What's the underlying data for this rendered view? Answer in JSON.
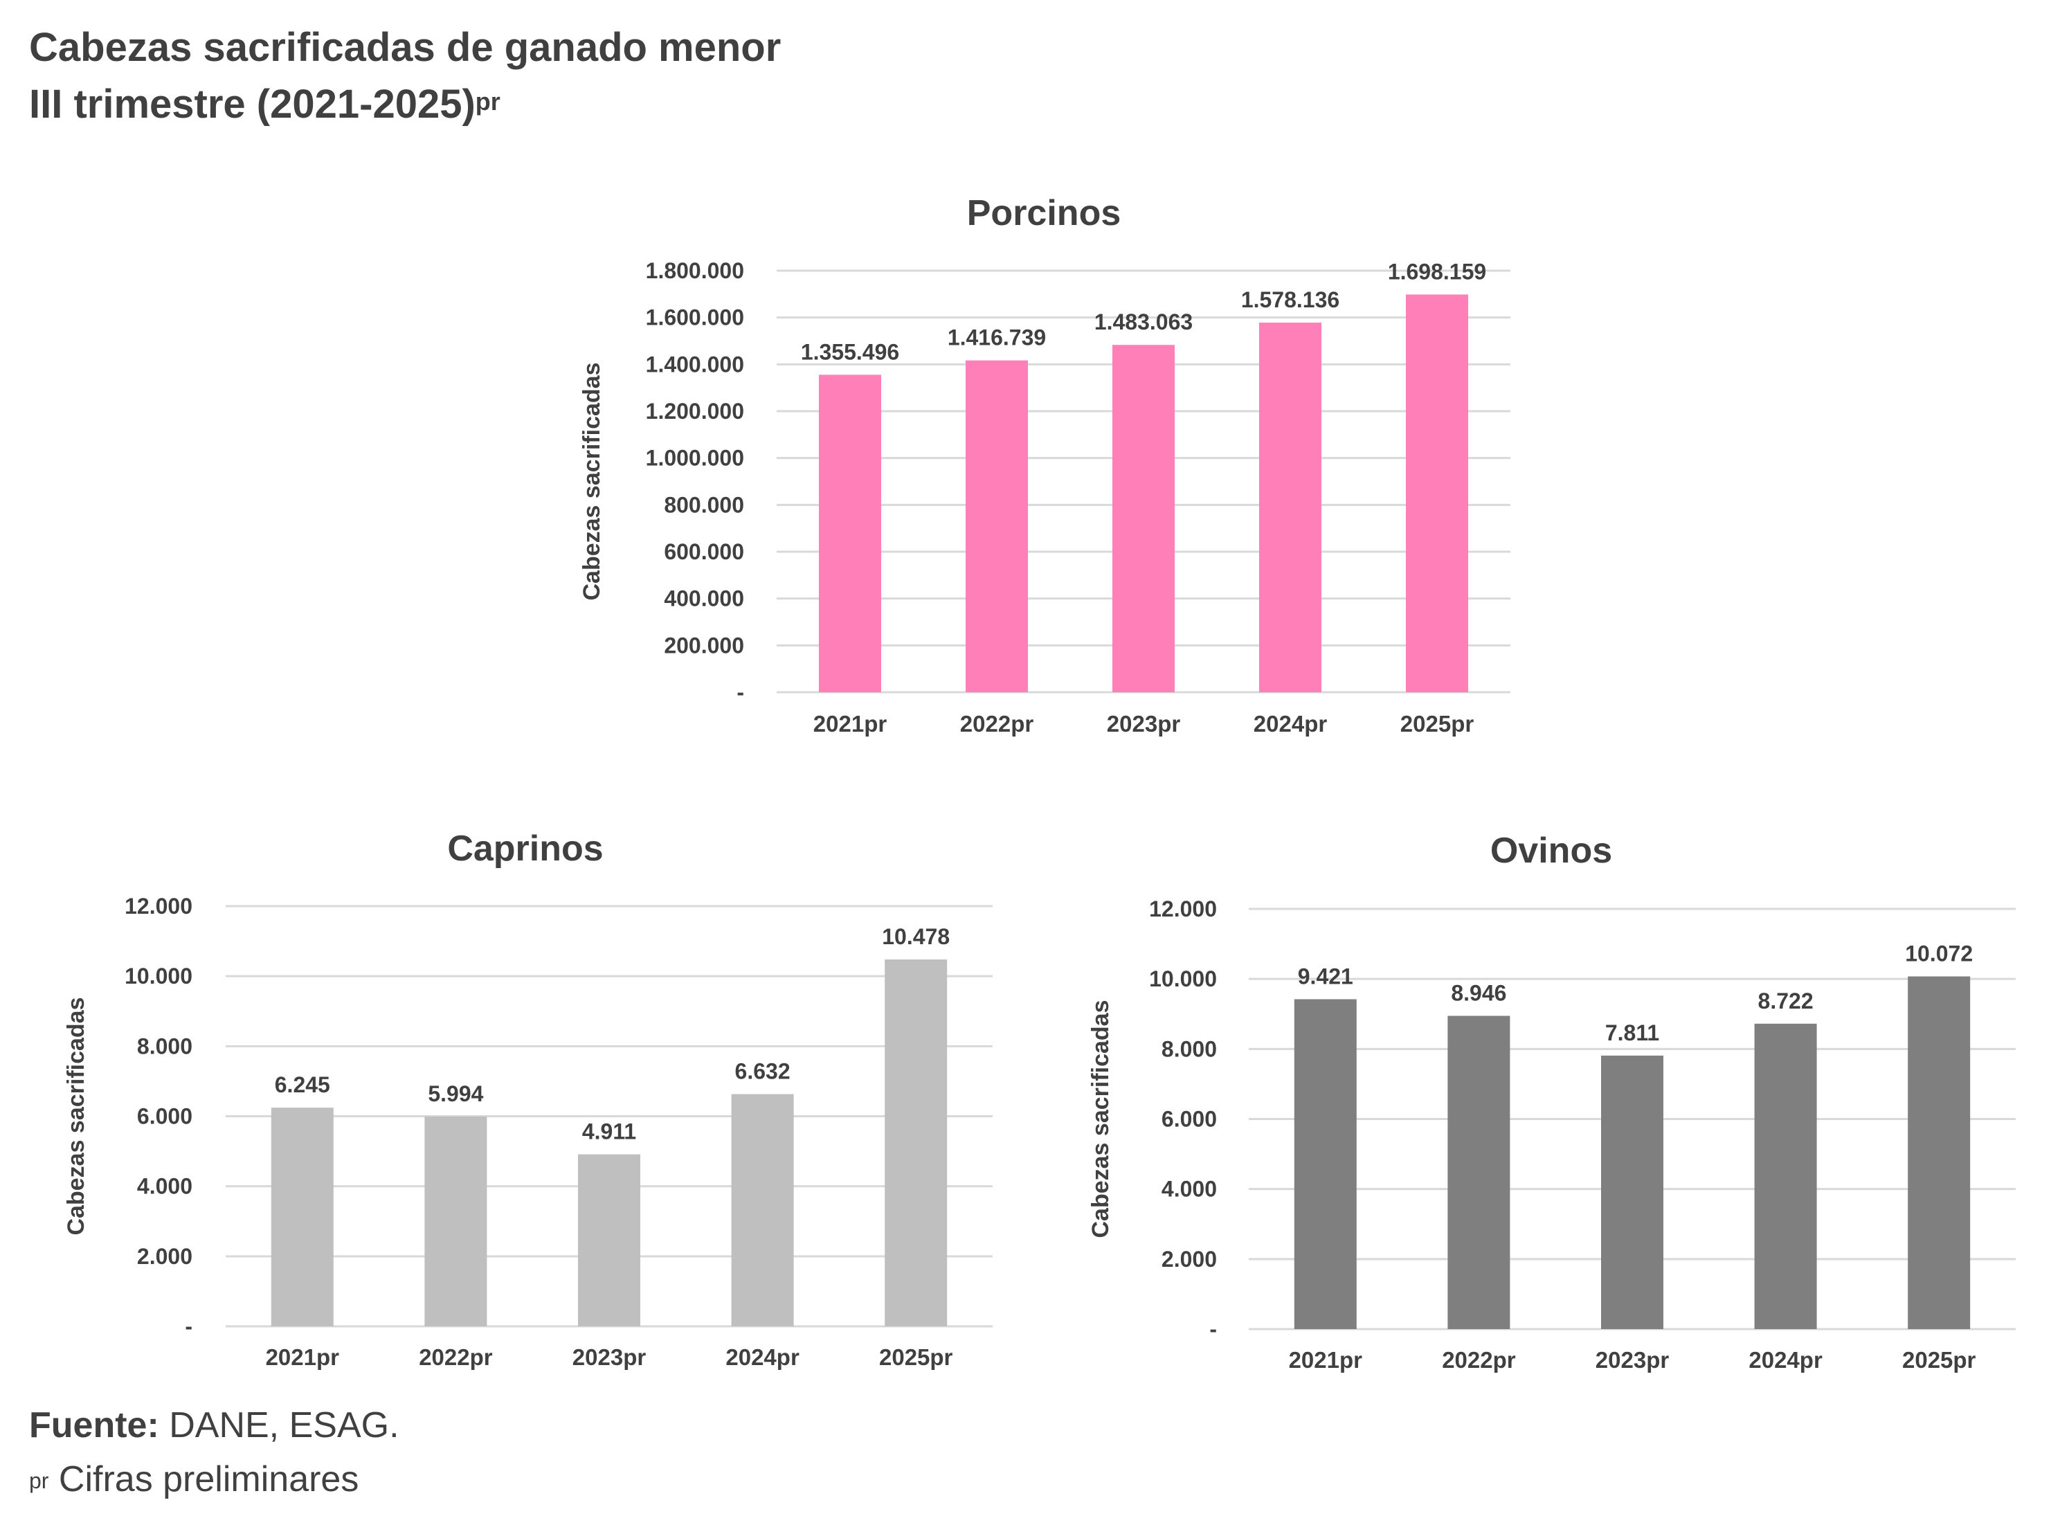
{
  "header": {
    "title_line1": "Cabezas sacrificadas de ganado menor",
    "title_line2": "III trimestre (2021-2025)",
    "title_sup": "pr"
  },
  "footer": {
    "source_label": "Fuente:",
    "source_text": " DANE, ESAG.",
    "note_sup": "pr",
    "note_text": " Cifras preliminares"
  },
  "colors": {
    "porcinos": "#FF7FB8",
    "caprinos": "#BFBFBF",
    "ovinos": "#7F7F7F",
    "grid": "#D9D9D9",
    "text": "#404040"
  },
  "chart_data": [
    {
      "type": "bar",
      "title": "Porcinos",
      "ylabel": "Cabezas sacrificadas",
      "xlabel": "",
      "categories": [
        "2021pr",
        "2022pr",
        "2023pr",
        "2024pr",
        "2025pr"
      ],
      "values": [
        1355496,
        1416739,
        1483063,
        1578136,
        1698159
      ],
      "value_labels": [
        "1.355.496",
        "1.416.739",
        "1.483.063",
        "1.578.136",
        "1.698.159"
      ],
      "ylim": [
        0,
        1800000
      ],
      "yticks": [
        0,
        200000,
        400000,
        600000,
        800000,
        1000000,
        1200000,
        1400000,
        1600000,
        1800000
      ],
      "ytick_labels": [
        "-",
        "200.000",
        "400.000",
        "600.000",
        "800.000",
        "1.000.000",
        "1.200.000",
        "1.400.000",
        "1.600.000",
        "1.800.000"
      ],
      "grid": true,
      "color_key": "porcinos"
    },
    {
      "type": "bar",
      "title": "Caprinos",
      "ylabel": "Cabezas sacrificadas",
      "xlabel": "",
      "categories": [
        "2021pr",
        "2022pr",
        "2023pr",
        "2024pr",
        "2025pr"
      ],
      "values": [
        6245,
        5994,
        4911,
        6632,
        10478
      ],
      "value_labels": [
        "6.245",
        "5.994",
        "4.911",
        "6.632",
        "10.478"
      ],
      "ylim": [
        0,
        12000
      ],
      "yticks": [
        0,
        2000,
        4000,
        6000,
        8000,
        10000,
        12000
      ],
      "ytick_labels": [
        "-",
        "2.000",
        "4.000",
        "6.000",
        "8.000",
        "10.000",
        "12.000"
      ],
      "grid": true,
      "color_key": "caprinos"
    },
    {
      "type": "bar",
      "title": "Ovinos",
      "ylabel": "Cabezas sacrificadas",
      "xlabel": "",
      "categories": [
        "2021pr",
        "2022pr",
        "2023pr",
        "2024pr",
        "2025pr"
      ],
      "values": [
        9421,
        8946,
        7811,
        8722,
        10072
      ],
      "value_labels": [
        "9.421",
        "8.946",
        "7.811",
        "8.722",
        "10.072"
      ],
      "ylim": [
        0,
        12000
      ],
      "yticks": [
        0,
        2000,
        4000,
        6000,
        8000,
        10000,
        12000
      ],
      "ytick_labels": [
        "-",
        "2.000",
        "4.000",
        "6.000",
        "8.000",
        "10.000",
        "12.000"
      ],
      "grid": true,
      "color_key": "ovinos"
    }
  ]
}
